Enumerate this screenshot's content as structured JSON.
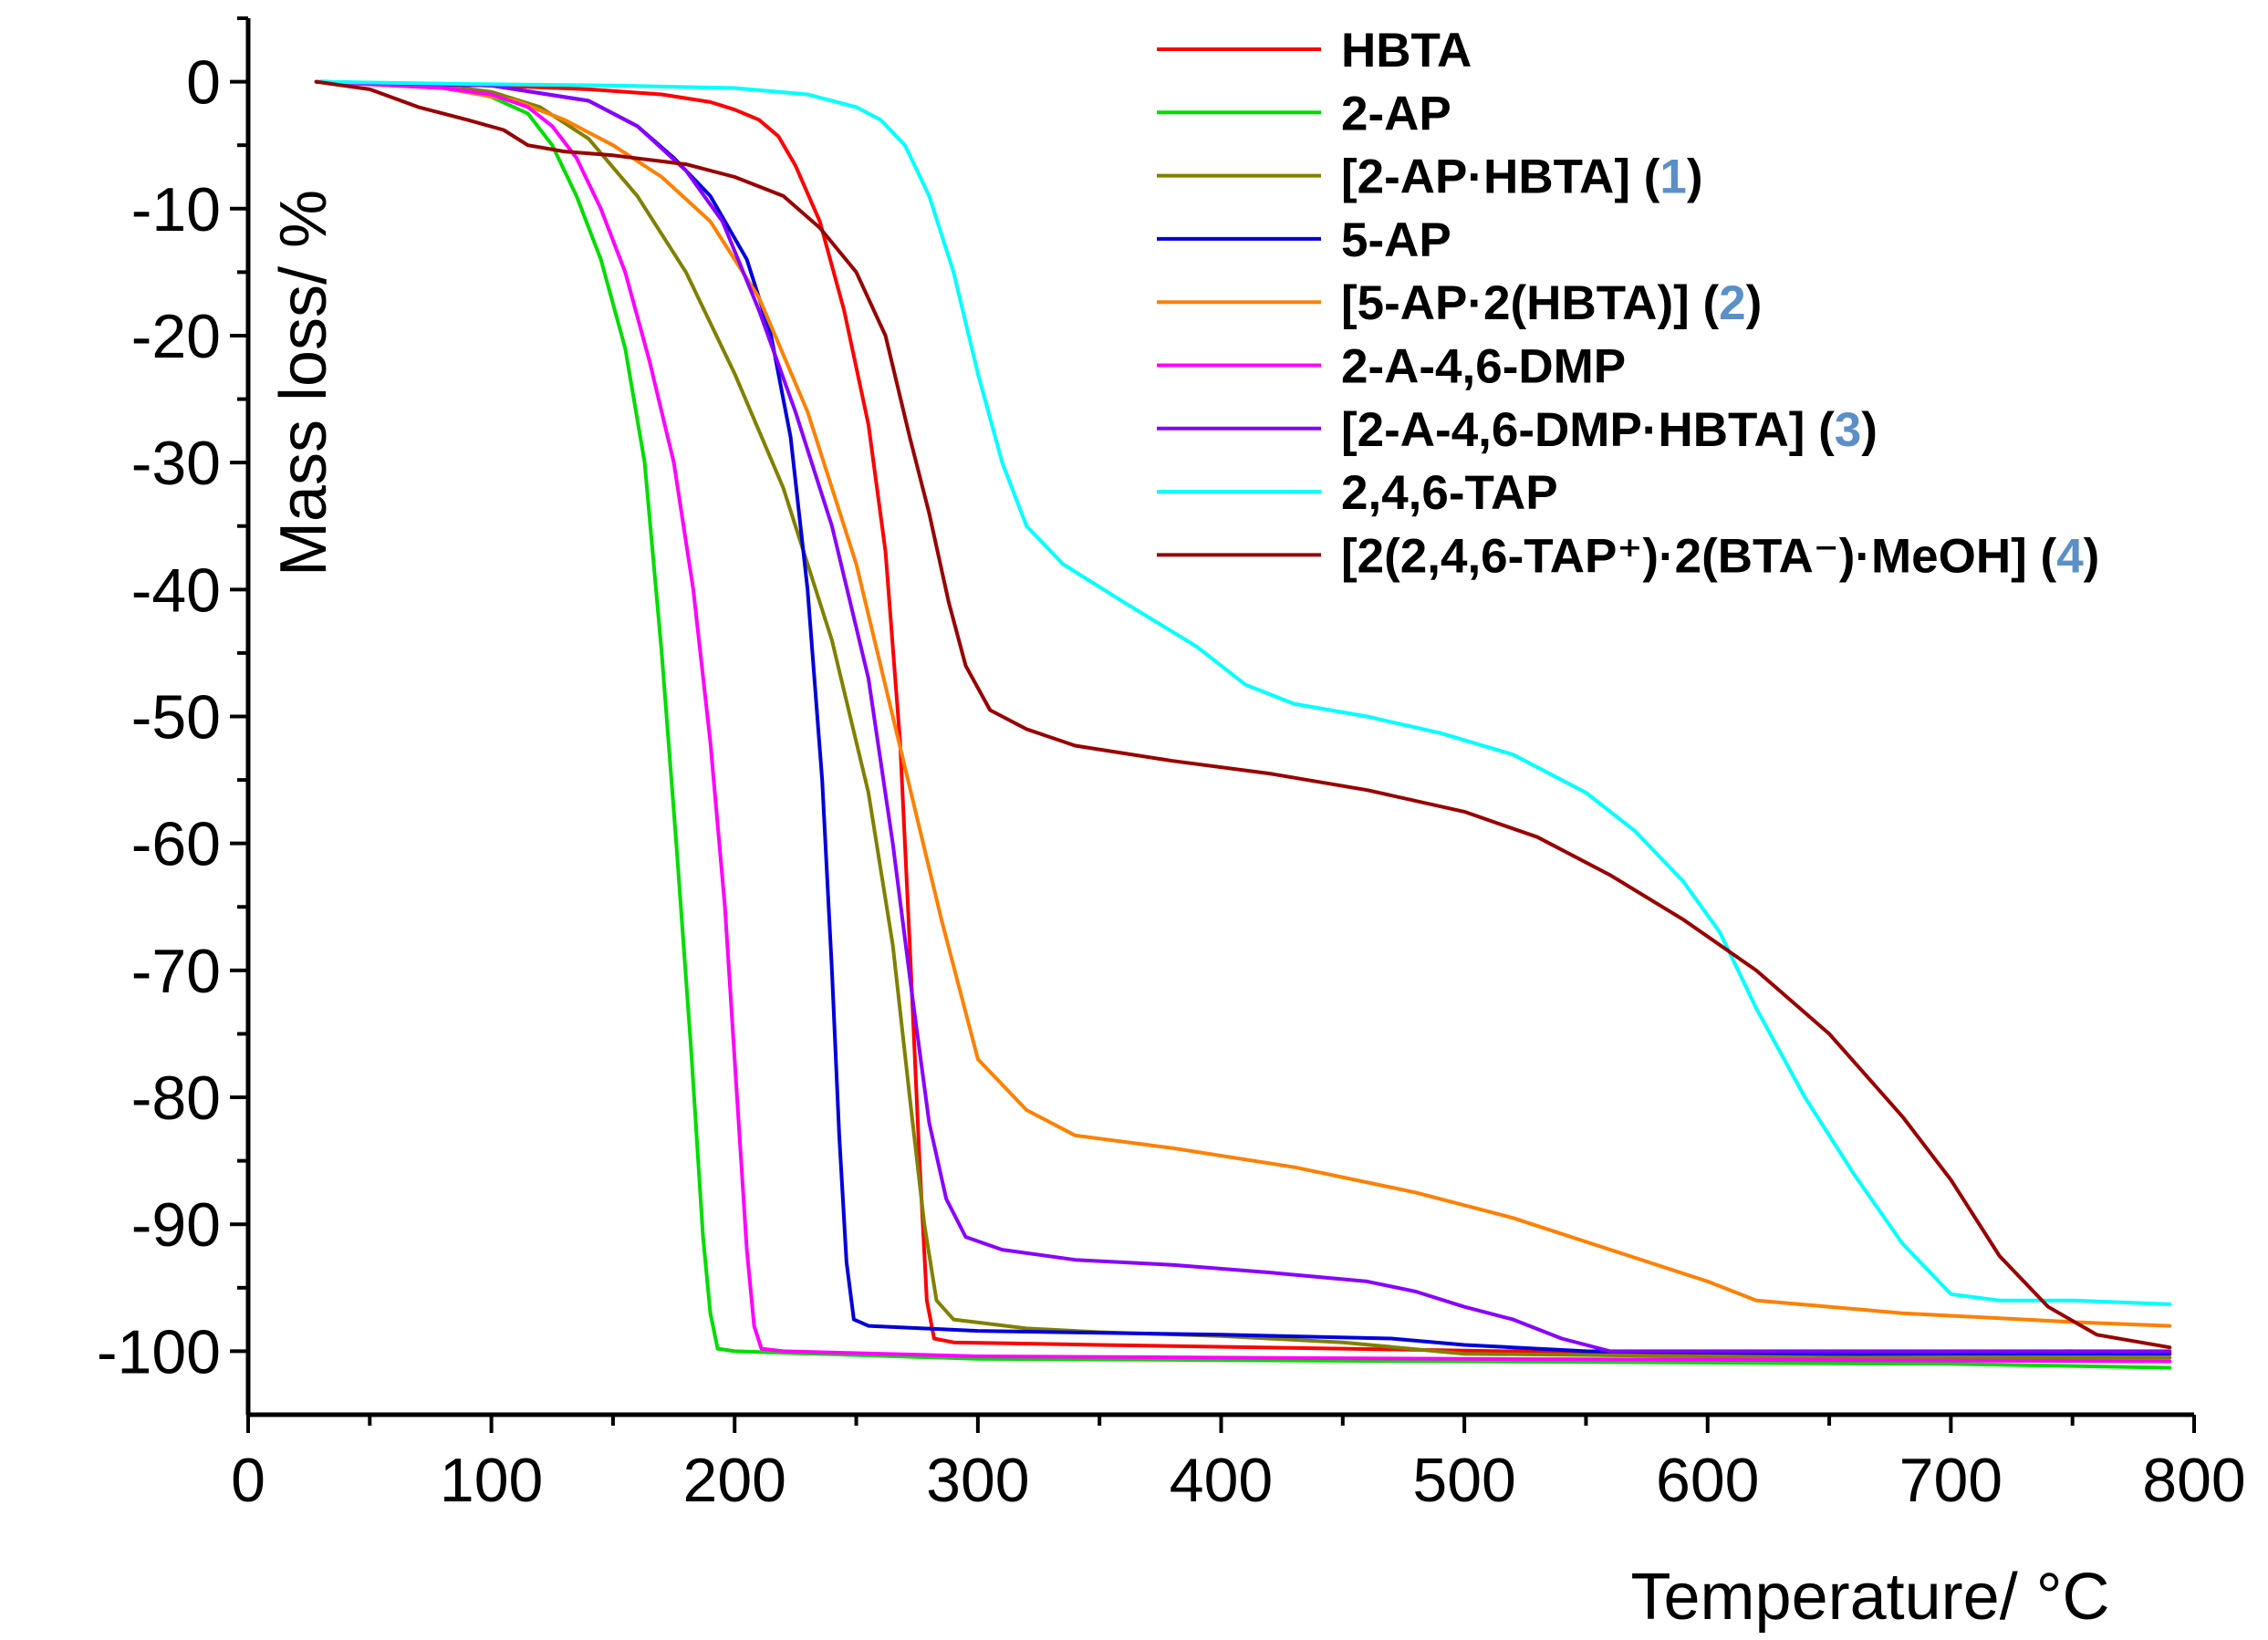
{
  "chart_data": {
    "type": "line",
    "title": "",
    "xlabel": "Temperature/ °C",
    "ylabel": "Mass loss/ %",
    "xlim": [
      0,
      800
    ],
    "ylim": [
      -105,
      5
    ],
    "xticks": [
      "0",
      "100",
      "200",
      "300",
      "400",
      "500",
      "600",
      "700",
      "800"
    ],
    "yticks": [
      "0",
      "-10",
      "-20",
      "-30",
      "-40",
      "-50",
      "-60",
      "-70",
      "-80",
      "-90",
      "-100"
    ],
    "grid": false,
    "legend_position": "top-right",
    "series": [
      {
        "name": "HBTA",
        "color": "#ff0000",
        "points": [
          [
            28,
            0
          ],
          [
            100,
            -0.3
          ],
          [
            140,
            -0.6
          ],
          [
            170,
            -1
          ],
          [
            190,
            -1.6
          ],
          [
            200,
            -2.2
          ],
          [
            210,
            -3
          ],
          [
            218,
            -4.3
          ],
          [
            225,
            -6.6
          ],
          [
            235,
            -11
          ],
          [
            245,
            -18
          ],
          [
            255,
            -27
          ],
          [
            262,
            -37
          ],
          [
            268,
            -52
          ],
          [
            272,
            -68
          ],
          [
            276,
            -85
          ],
          [
            279,
            -96
          ],
          [
            282,
            -99
          ],
          [
            290,
            -99.3
          ],
          [
            350,
            -99.5
          ],
          [
            450,
            -99.8
          ],
          [
            550,
            -100.1
          ],
          [
            650,
            -100.2
          ],
          [
            750,
            -100
          ]
        ]
      },
      {
        "name": "2-AP",
        "color": "#00dd00",
        "points": [
          [
            28,
            0
          ],
          [
            80,
            -0.3
          ],
          [
            100,
            -1.2
          ],
          [
            115,
            -2.5
          ],
          [
            125,
            -5
          ],
          [
            135,
            -9
          ],
          [
            145,
            -14
          ],
          [
            155,
            -21
          ],
          [
            163,
            -30
          ],
          [
            170,
            -45
          ],
          [
            176,
            -60
          ],
          [
            182,
            -76
          ],
          [
            187,
            -91
          ],
          [
            190,
            -97
          ],
          [
            193,
            -99.8
          ],
          [
            200,
            -100
          ],
          [
            300,
            -100.6
          ],
          [
            500,
            -100.8
          ],
          [
            700,
            -101
          ],
          [
            790,
            -101.3
          ]
        ]
      },
      {
        "name": "[2-AP·HBTA] (1)",
        "color": "#808000",
        "points": [
          [
            28,
            0
          ],
          [
            80,
            -0.3
          ],
          [
            100,
            -0.8
          ],
          [
            120,
            -2
          ],
          [
            140,
            -4.5
          ],
          [
            160,
            -9
          ],
          [
            180,
            -15
          ],
          [
            200,
            -23
          ],
          [
            220,
            -32
          ],
          [
            240,
            -44
          ],
          [
            255,
            -56
          ],
          [
            265,
            -68
          ],
          [
            272,
            -80
          ],
          [
            278,
            -90
          ],
          [
            283,
            -96
          ],
          [
            290,
            -97.5
          ],
          [
            320,
            -98.2
          ],
          [
            350,
            -98.5
          ],
          [
            400,
            -98.8
          ],
          [
            450,
            -99.3
          ],
          [
            500,
            -100.2
          ],
          [
            600,
            -100.4
          ],
          [
            700,
            -100.5
          ],
          [
            790,
            -100.5
          ]
        ]
      },
      {
        "name": "5-AP",
        "color": "#0000dd",
        "points": [
          [
            28,
            0
          ],
          [
            100,
            -0.3
          ],
          [
            140,
            -1.5
          ],
          [
            160,
            -3.5
          ],
          [
            175,
            -6
          ],
          [
            190,
            -9
          ],
          [
            205,
            -14
          ],
          [
            215,
            -20
          ],
          [
            223,
            -28
          ],
          [
            230,
            -40
          ],
          [
            236,
            -55
          ],
          [
            240,
            -70
          ],
          [
            243,
            -83
          ],
          [
            246,
            -93
          ],
          [
            249,
            -97.5
          ],
          [
            255,
            -98
          ],
          [
            300,
            -98.4
          ],
          [
            400,
            -98.7
          ],
          [
            470,
            -99
          ],
          [
            500,
            -99.5
          ],
          [
            550,
            -100
          ],
          [
            650,
            -100.2
          ],
          [
            790,
            -100.2
          ]
        ]
      },
      {
        "name": "[5-AP·2(HBTA)] (2)",
        "color": "#ff8000",
        "points": [
          [
            28,
            0
          ],
          [
            80,
            -0.5
          ],
          [
            110,
            -1.5
          ],
          [
            130,
            -3
          ],
          [
            150,
            -5
          ],
          [
            170,
            -7.5
          ],
          [
            190,
            -11
          ],
          [
            210,
            -17
          ],
          [
            230,
            -26
          ],
          [
            250,
            -38
          ],
          [
            270,
            -54
          ],
          [
            285,
            -66
          ],
          [
            300,
            -77
          ],
          [
            320,
            -81
          ],
          [
            340,
            -83
          ],
          [
            380,
            -84
          ],
          [
            430,
            -85.5
          ],
          [
            480,
            -87.5
          ],
          [
            520,
            -89.5
          ],
          [
            560,
            -92
          ],
          [
            600,
            -94.5
          ],
          [
            620,
            -96
          ],
          [
            680,
            -97
          ],
          [
            750,
            -97.7
          ],
          [
            790,
            -98
          ]
        ]
      },
      {
        "name": "2-A-4,6-DMP",
        "color": "#ff00ff",
        "points": [
          [
            28,
            0
          ],
          [
            80,
            -0.5
          ],
          [
            100,
            -1
          ],
          [
            115,
            -2
          ],
          [
            125,
            -3.5
          ],
          [
            135,
            -6
          ],
          [
            145,
            -10
          ],
          [
            155,
            -15
          ],
          [
            165,
            -22
          ],
          [
            175,
            -30
          ],
          [
            183,
            -40
          ],
          [
            190,
            -52
          ],
          [
            196,
            -65
          ],
          [
            201,
            -80
          ],
          [
            205,
            -92
          ],
          [
            208,
            -98
          ],
          [
            211,
            -99.8
          ],
          [
            220,
            -100
          ],
          [
            300,
            -100.4
          ],
          [
            500,
            -100.6
          ],
          [
            790,
            -100.8
          ]
        ]
      },
      {
        "name": "[2-A-4,6-DMP·HBTA] (3)",
        "color": "#8a00ff",
        "points": [
          [
            28,
            0
          ],
          [
            100,
            -0.3
          ],
          [
            140,
            -1.5
          ],
          [
            160,
            -3.5
          ],
          [
            180,
            -7
          ],
          [
            195,
            -11
          ],
          [
            210,
            -18
          ],
          [
            225,
            -26
          ],
          [
            240,
            -35
          ],
          [
            255,
            -47
          ],
          [
            265,
            -60
          ],
          [
            273,
            -72
          ],
          [
            280,
            -82
          ],
          [
            287,
            -88
          ],
          [
            295,
            -91
          ],
          [
            310,
            -92
          ],
          [
            340,
            -92.8
          ],
          [
            380,
            -93.2
          ],
          [
            420,
            -93.8
          ],
          [
            460,
            -94.5
          ],
          [
            480,
            -95.3
          ],
          [
            500,
            -96.5
          ],
          [
            520,
            -97.5
          ],
          [
            540,
            -99
          ],
          [
            560,
            -100
          ],
          [
            650,
            -100
          ],
          [
            790,
            -100
          ]
        ]
      },
      {
        "name": "2,4,6-TAP",
        "color": "#00ffff",
        "points": [
          [
            28,
            0
          ],
          [
            100,
            -0.2
          ],
          [
            150,
            -0.3
          ],
          [
            200,
            -0.5
          ],
          [
            230,
            -1
          ],
          [
            250,
            -2
          ],
          [
            260,
            -3
          ],
          [
            270,
            -5
          ],
          [
            280,
            -9
          ],
          [
            290,
            -15
          ],
          [
            300,
            -23
          ],
          [
            310,
            -30
          ],
          [
            320,
            -35
          ],
          [
            335,
            -38
          ],
          [
            360,
            -41
          ],
          [
            390,
            -44.5
          ],
          [
            410,
            -47.5
          ],
          [
            430,
            -49
          ],
          [
            460,
            -50
          ],
          [
            490,
            -51.3
          ],
          [
            520,
            -53
          ],
          [
            550,
            -56
          ],
          [
            570,
            -59
          ],
          [
            590,
            -63
          ],
          [
            605,
            -67
          ],
          [
            620,
            -73
          ],
          [
            640,
            -80
          ],
          [
            660,
            -86
          ],
          [
            680,
            -91.5
          ],
          [
            700,
            -95.5
          ],
          [
            720,
            -96
          ],
          [
            750,
            -96
          ],
          [
            790,
            -96.3
          ]
        ]
      },
      {
        "name": "[2(2,4,6-TAP⁺)·2(BTA⁻)·MeOH] (4)",
        "color": "#990000",
        "points": [
          [
            28,
            0
          ],
          [
            50,
            -0.6
          ],
          [
            70,
            -2
          ],
          [
            90,
            -3
          ],
          [
            105,
            -3.8
          ],
          [
            115,
            -5
          ],
          [
            130,
            -5.5
          ],
          [
            150,
            -5.8
          ],
          [
            180,
            -6.5
          ],
          [
            200,
            -7.5
          ],
          [
            220,
            -9
          ],
          [
            235,
            -11.5
          ],
          [
            250,
            -15
          ],
          [
            262,
            -20
          ],
          [
            272,
            -28
          ],
          [
            280,
            -34
          ],
          [
            288,
            -41
          ],
          [
            295,
            -46
          ],
          [
            305,
            -49.5
          ],
          [
            320,
            -51
          ],
          [
            340,
            -52.3
          ],
          [
            380,
            -53.5
          ],
          [
            420,
            -54.5
          ],
          [
            460,
            -55.8
          ],
          [
            500,
            -57.5
          ],
          [
            530,
            -59.5
          ],
          [
            560,
            -62.5
          ],
          [
            590,
            -66
          ],
          [
            620,
            -70
          ],
          [
            650,
            -75
          ],
          [
            680,
            -81.5
          ],
          [
            700,
            -86.5
          ],
          [
            720,
            -92.5
          ],
          [
            740,
            -96.5
          ],
          [
            760,
            -98.7
          ],
          [
            790,
            -99.7
          ]
        ]
      }
    ]
  },
  "legend": {
    "items": [
      {
        "label": "HBTA",
        "num": "",
        "color": "#ff0000"
      },
      {
        "label": "2-AP",
        "num": "",
        "color": "#00dd00"
      },
      {
        "label": "[2-AP·HBTA] (",
        "num": "1",
        "tail": ")",
        "color": "#808000"
      },
      {
        "label": "5-AP",
        "num": "",
        "color": "#0000dd"
      },
      {
        "label": "[5-AP·2(HBTA)] (",
        "num": "2",
        "tail": ")",
        "color": "#ff8000"
      },
      {
        "label": "2-A-4,6-DMP",
        "num": "",
        "color": "#ff00ff"
      },
      {
        "label": "[2-A-4,6-DMP·HBTA] (",
        "num": "3",
        "tail": ")",
        "color": "#8a00ff"
      },
      {
        "label": "2,4,6-TAP",
        "num": "",
        "color": "#00ffff"
      },
      {
        "label": "[2(2,4,6-TAP⁺)·2(BTA⁻)·MeOH] (",
        "num": "4",
        "tail": ")",
        "color": "#990000"
      }
    ],
    "number_color": "#5b8fc7"
  }
}
